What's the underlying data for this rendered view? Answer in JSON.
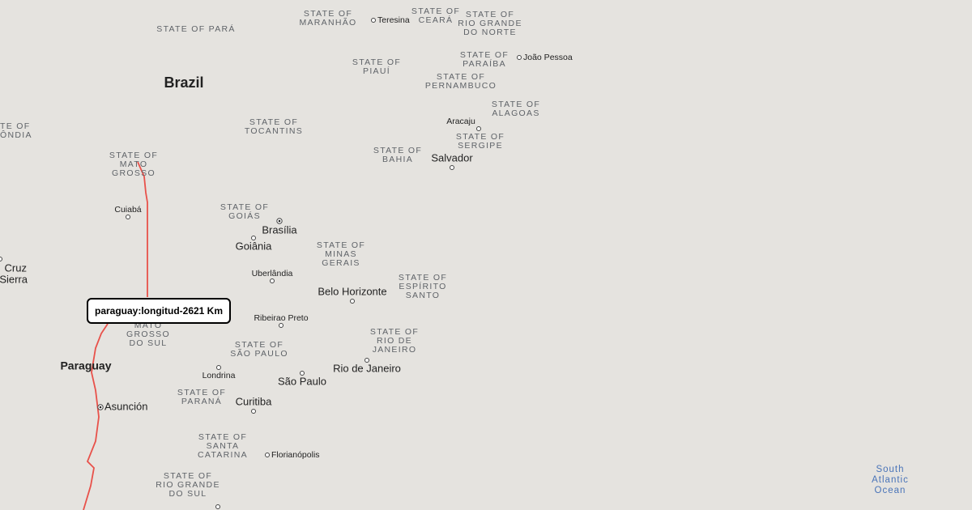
{
  "map": {
    "countries": [
      "Brazil",
      "Paraguay"
    ],
    "states": [
      {
        "lines": [
          "STATE OF PARÁ"
        ]
      },
      {
        "lines": [
          "STATE OF",
          "MARANHÃO"
        ]
      },
      {
        "lines": [
          "STATE OF",
          "CEARÁ"
        ]
      },
      {
        "lines": [
          "STATE OF",
          "RIO GRANDE",
          "DO NORTE"
        ]
      },
      {
        "lines": [
          "STATE OF",
          "PIAUÍ"
        ]
      },
      {
        "lines": [
          "STATE OF",
          "PARAÍBA"
        ]
      },
      {
        "lines": [
          "STATE OF",
          "PERNAMBUCO"
        ]
      },
      {
        "lines": [
          "STATE OF",
          "ALAGOAS"
        ]
      },
      {
        "lines": [
          "TE OF",
          "ÔNDIA"
        ]
      },
      {
        "lines": [
          "STATE OF",
          "TOCANTINS"
        ]
      },
      {
        "lines": [
          "STATE OF",
          "MATO",
          "GROSSO"
        ]
      },
      {
        "lines": [
          "STATE OF",
          "SERGIPE"
        ]
      },
      {
        "lines": [
          "STATE OF",
          "BAHIA"
        ]
      },
      {
        "lines": [
          "STATE OF",
          "GOIÁS"
        ]
      },
      {
        "lines": [
          "STATE OF",
          "MINAS",
          "GERAIS"
        ]
      },
      {
        "lines": [
          "STATE OF",
          "ESPÍRITO",
          "SANTO"
        ]
      },
      {
        "lines": [
          "MATO",
          "GROSSO",
          "DO SUL"
        ]
      },
      {
        "lines": [
          "STATE OF",
          "RIO DE",
          "JANEIRO"
        ]
      },
      {
        "lines": [
          "STATE OF",
          "SÃO PAULO"
        ]
      },
      {
        "lines": [
          "STATE OF",
          "PARANÁ"
        ]
      },
      {
        "lines": [
          "STATE OF",
          "SANTA",
          "CATARINA"
        ]
      },
      {
        "lines": [
          "STATE OF",
          "RIO GRANDE",
          "DO SUL"
        ]
      }
    ],
    "cities": [
      "Teresina",
      "João Pessoa",
      "Aracaju",
      "Salvador",
      "Cuiabá",
      "Brasília",
      "Goiânia",
      "Uberlândia",
      "Belo Horizonte",
      "Ribeirao Preto",
      "Londrina",
      "Rio de Janeiro",
      "São Paulo",
      "Asunción",
      "Curitiba",
      "Florianópolis"
    ],
    "edge_labels": [
      "Cruz",
      "Sierra"
    ],
    "ocean": {
      "lines": [
        "South",
        "Atlantic",
        "Ocean"
      ]
    },
    "tooltip": "paraguay:longitud-2621 Km"
  }
}
